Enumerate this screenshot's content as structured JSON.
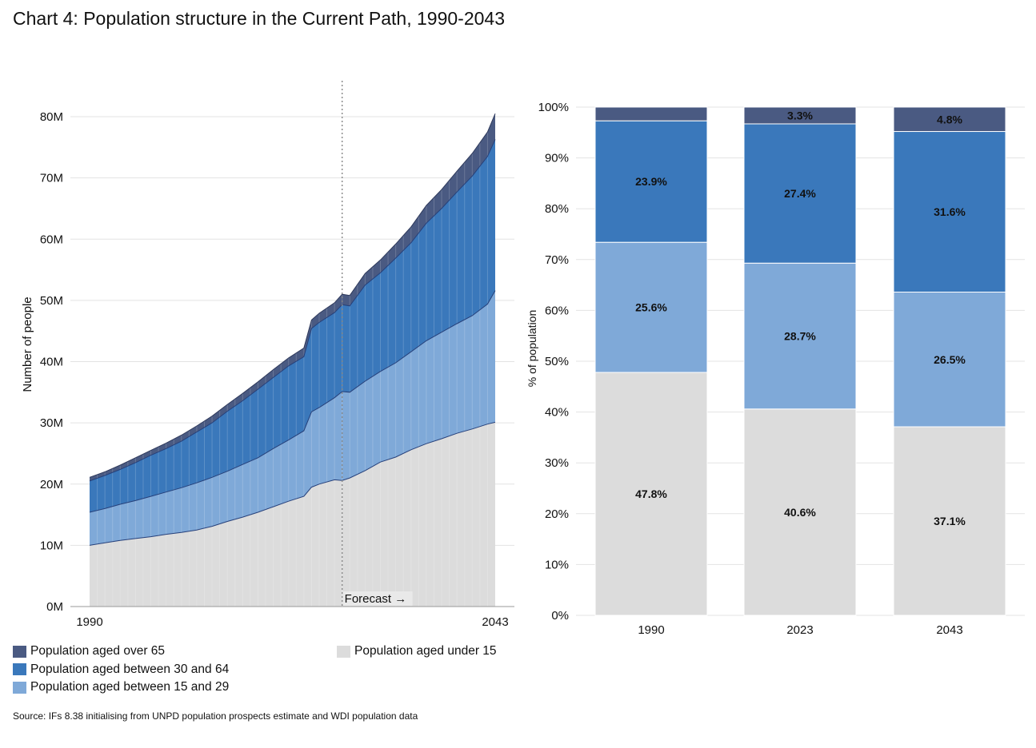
{
  "title": "Chart 4: Population structure in the Current Path, 1990-2043",
  "source": "Source: IFs 8.38 initialising from UNPD population prospects estimate and WDI population data",
  "colors": {
    "over65": "#4a5a82",
    "age30_64": "#3a78bb",
    "age15_29": "#7fa9d8",
    "under15": "#dcdcdc",
    "area_edge": "#26407a"
  },
  "legend": {
    "over65": "Population aged over 65",
    "age30_64": "Population aged between 30 and 64",
    "age15_29": "Population aged between 15 and 29",
    "under15": "Population aged under 15"
  },
  "chart_data": [
    {
      "type": "area",
      "stacked": true,
      "ylabel": "Number of people",
      "x_tick_labels": [
        "1990",
        "2043"
      ],
      "y_tick_labels": [
        "0M",
        "10M",
        "20M",
        "30M",
        "40M",
        "50M",
        "60M",
        "70M",
        "80M"
      ],
      "ylim": [
        0,
        80
      ],
      "y_unit": "M",
      "forecast_start": 2023,
      "forecast_label": "Forecast →",
      "grid": true,
      "x": [
        1990,
        1992,
        1994,
        1996,
        1998,
        2000,
        2002,
        2004,
        2006,
        2008,
        2010,
        2012,
        2014,
        2016,
        2018,
        2019,
        2020,
        2022,
        2023,
        2024,
        2026,
        2028,
        2030,
        2032,
        2034,
        2036,
        2038,
        2040,
        2042,
        2043
      ],
      "series": [
        {
          "key": "under15",
          "name": "Population aged under 15",
          "values": [
            10.0,
            10.4,
            10.8,
            11.1,
            11.4,
            11.8,
            12.1,
            12.5,
            13.1,
            13.9,
            14.6,
            15.4,
            16.3,
            17.2,
            18.0,
            19.5,
            20.0,
            20.7,
            20.6,
            21.0,
            22.2,
            23.6,
            24.4,
            25.6,
            26.6,
            27.4,
            28.3,
            29.0,
            29.8,
            30.1
          ]
        },
        {
          "key": "age15_29",
          "name": "Population aged between 15 and 29",
          "values": [
            5.4,
            5.6,
            5.9,
            6.2,
            6.6,
            6.9,
            7.3,
            7.7,
            8.0,
            8.2,
            8.6,
            8.9,
            9.5,
            10.0,
            10.7,
            12.3,
            12.5,
            13.4,
            14.5,
            14.0,
            14.6,
            14.8,
            15.4,
            16.0,
            16.8,
            17.4,
            17.9,
            18.5,
            19.6,
            21.5
          ]
        },
        {
          "key": "age30_64",
          "name": "Population aged between 30 and 64",
          "values": [
            5.1,
            5.4,
            5.7,
            6.2,
            6.7,
            7.1,
            7.6,
            8.3,
            8.9,
            9.8,
            10.4,
            11.2,
            11.6,
            12.1,
            12.1,
            13.6,
            13.9,
            13.9,
            14.2,
            14.1,
            15.7,
            16.1,
            17.1,
            17.8,
            19.2,
            20.2,
            21.5,
            22.8,
            24.1,
            24.7
          ]
        },
        {
          "key": "over65",
          "name": "Population aged over 65",
          "values": [
            0.6,
            0.6,
            0.7,
            0.8,
            0.8,
            0.9,
            1.0,
            1.0,
            1.1,
            1.1,
            1.2,
            1.2,
            1.3,
            1.3,
            1.4,
            1.4,
            1.5,
            1.6,
            1.7,
            1.7,
            1.9,
            2.1,
            2.3,
            2.6,
            2.9,
            3.1,
            3.4,
            3.7,
            4.0,
            4.2
          ]
        }
      ]
    },
    {
      "type": "bar",
      "stacked": true,
      "ylabel": "% of population",
      "categories": [
        "1990",
        "2023",
        "2043"
      ],
      "y_tick_labels": [
        "0%",
        "10%",
        "20%",
        "30%",
        "40%",
        "50%",
        "60%",
        "70%",
        "80%",
        "90%",
        "100%"
      ],
      "ylim": [
        0,
        100
      ],
      "grid": true,
      "series": [
        {
          "key": "under15",
          "name": "Population aged under 15",
          "values": [
            47.8,
            40.6,
            37.1
          ],
          "labels": [
            "47.8%",
            "40.6%",
            "37.1%"
          ]
        },
        {
          "key": "age15_29",
          "name": "Population aged between 15 and 29",
          "values": [
            25.6,
            28.7,
            26.5
          ],
          "labels": [
            "25.6%",
            "28.7%",
            "26.5%"
          ]
        },
        {
          "key": "age30_64",
          "name": "Population aged between 30 and 64",
          "values": [
            23.9,
            27.4,
            31.6
          ],
          "labels": [
            "23.9%",
            "27.4%",
            "31.6%"
          ]
        },
        {
          "key": "over65",
          "name": "Population aged over 65",
          "values": [
            2.7,
            3.3,
            4.8
          ],
          "labels": [
            "",
            "3.3%",
            "4.8%"
          ]
        }
      ]
    }
  ]
}
